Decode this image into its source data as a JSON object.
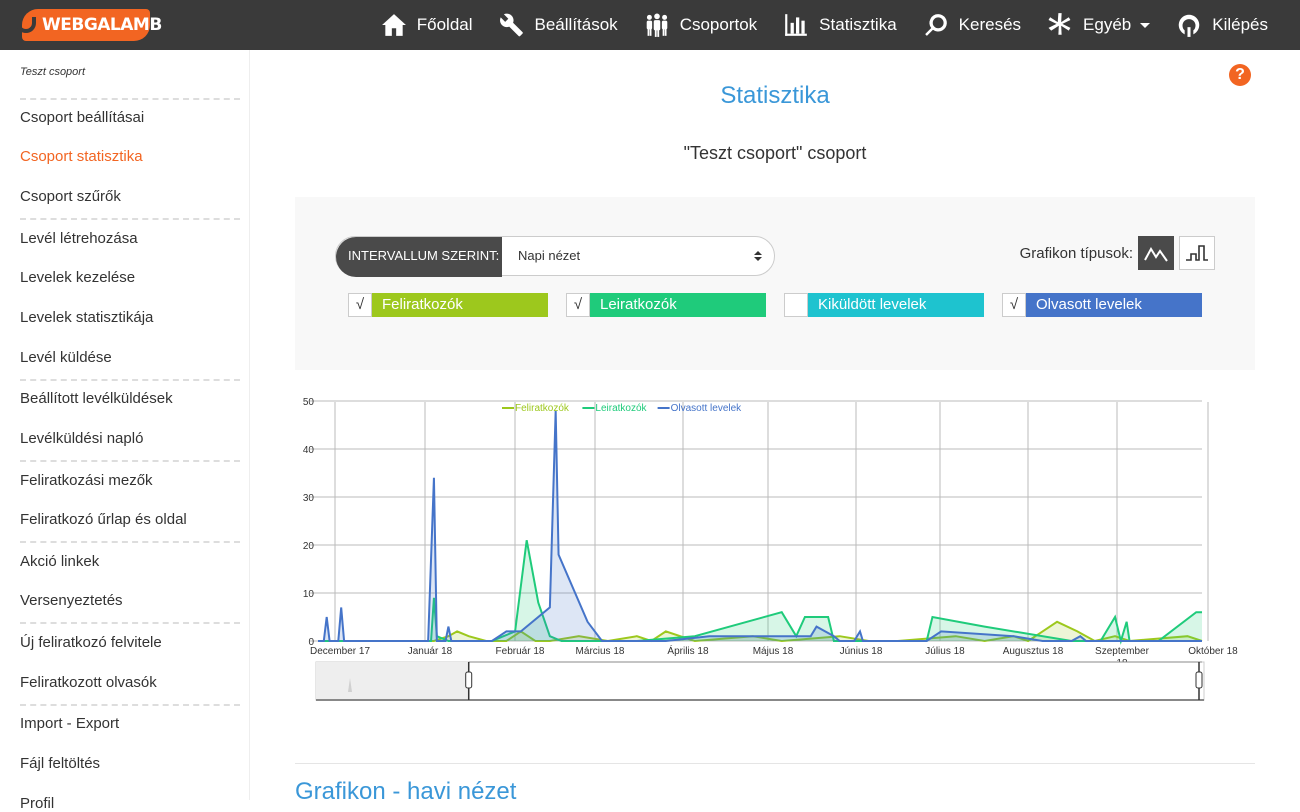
{
  "app": {
    "logo": "WEBGALAMB"
  },
  "nav": [
    {
      "label": "Főoldal",
      "icon": "home-icon"
    },
    {
      "label": "Beállítások",
      "icon": "tools-icon"
    },
    {
      "label": "Csoportok",
      "icon": "group-icon"
    },
    {
      "label": "Statisztika",
      "icon": "bar-chart-icon"
    },
    {
      "label": "Keresés",
      "icon": "search-icon"
    },
    {
      "label": "Egyéb",
      "icon": "asterisk-icon"
    },
    {
      "label": "Kilépés",
      "icon": "power-icon"
    }
  ],
  "sidebar": {
    "group_name": "Teszt csoport",
    "items": [
      {
        "label": "Csoport beállításai"
      },
      {
        "label": "Csoport statisztika",
        "active": true
      },
      {
        "label": "Csoport szűrők"
      },
      {
        "label": "Levél létrehozása"
      },
      {
        "label": "Levelek kezelése"
      },
      {
        "label": "Levelek statisztikája"
      },
      {
        "label": "Levél küldése"
      },
      {
        "label": "Beállított levélküldések"
      },
      {
        "label": "Levélküldési napló"
      },
      {
        "label": "Feliratkozási mezők"
      },
      {
        "label": "Feliratkozó űrlap és oldal"
      },
      {
        "label": "Akció linkek"
      },
      {
        "label": "Versenyeztetés"
      },
      {
        "label": "Új feliratkozó felvitele"
      },
      {
        "label": "Feliratkozott olvasók"
      },
      {
        "label": "Import - Export"
      },
      {
        "label": "Fájl feltöltés"
      },
      {
        "label": "Profil"
      }
    ]
  },
  "help": {
    "label": "?"
  },
  "page": {
    "title": "Statisztika",
    "subtitle": "\"Teszt csoport\" csoport",
    "section_title": "Grafikon - havi nézet"
  },
  "filters": {
    "interval_label": "INTERVALLUM SZERINT:",
    "interval_value": "Napi nézet",
    "chart_types_label": "Grafikon típusok:",
    "series": [
      {
        "label": "Feliratkozók",
        "checked": true,
        "color": "#9dc81d"
      },
      {
        "label": "Leiratkozók",
        "checked": true,
        "color": "#1fcb7b"
      },
      {
        "label": "Kiküldött levelek",
        "checked": false,
        "color": "#1ec3cf"
      },
      {
        "label": "Olvasott levelek",
        "checked": true,
        "color": "#4574c9"
      }
    ]
  },
  "chart_data": {
    "type": "area",
    "ylim": [
      0,
      50
    ],
    "yticks": [
      0,
      10,
      20,
      30,
      40,
      50
    ],
    "xticks": [
      "December 17",
      "Január 18",
      "Február 18",
      "Március 18",
      "Április 18",
      "Május 18",
      "Június 18",
      "Július 18",
      "Augusztus 18",
      "Szeptember 18",
      "Október 18"
    ],
    "legend": [
      "Feliratkozók",
      "Leiratkozók",
      "Olvasott levelek"
    ],
    "series": [
      {
        "name": "Feliratkozók",
        "color": "#9dc81d",
        "points": [
          [
            0,
            0
          ],
          [
            40,
            0
          ],
          [
            45,
            1
          ],
          [
            48,
            2
          ],
          [
            52,
            1
          ],
          [
            58,
            0
          ],
          [
            65,
            0
          ],
          [
            70,
            2
          ],
          [
            75,
            0
          ],
          [
            80,
            0
          ],
          [
            90,
            1
          ],
          [
            100,
            0
          ],
          [
            110,
            1
          ],
          [
            115,
            0
          ],
          [
            120,
            2
          ],
          [
            125,
            1
          ],
          [
            130,
            0
          ],
          [
            150,
            1
          ],
          [
            160,
            0
          ],
          [
            180,
            1
          ],
          [
            190,
            0
          ],
          [
            200,
            0
          ],
          [
            220,
            1
          ],
          [
            230,
            0
          ],
          [
            240,
            1
          ],
          [
            245,
            0
          ],
          [
            250,
            2
          ],
          [
            255,
            4
          ],
          [
            262,
            2
          ],
          [
            268,
            0
          ],
          [
            275,
            1
          ],
          [
            280,
            0
          ],
          [
            300,
            1
          ],
          [
            305,
            0
          ]
        ]
      },
      {
        "name": "Leiratkozók",
        "color": "#1fcb7b",
        "points": [
          [
            0,
            0
          ],
          [
            39,
            0
          ],
          [
            40,
            9
          ],
          [
            41,
            1
          ],
          [
            45,
            0
          ],
          [
            60,
            0
          ],
          [
            68,
            2
          ],
          [
            72,
            21
          ],
          [
            76,
            8
          ],
          [
            80,
            1
          ],
          [
            84,
            0
          ],
          [
            100,
            0
          ],
          [
            110,
            0
          ],
          [
            130,
            1
          ],
          [
            160,
            6
          ],
          [
            165,
            1
          ],
          [
            168,
            5
          ],
          [
            176,
            5
          ],
          [
            178,
            0
          ],
          [
            190,
            0
          ],
          [
            200,
            0
          ],
          [
            210,
            0
          ],
          [
            212,
            5
          ],
          [
            230,
            3
          ],
          [
            260,
            0
          ],
          [
            270,
            0
          ],
          [
            275,
            5
          ],
          [
            277,
            0
          ],
          [
            278,
            2
          ],
          [
            279,
            4
          ],
          [
            280,
            0
          ],
          [
            290,
            0
          ],
          [
            303,
            6
          ],
          [
            305,
            6
          ]
        ]
      },
      {
        "name": "Olvasott levelek",
        "color": "#4574c9",
        "points": [
          [
            0,
            0
          ],
          [
            2,
            0
          ],
          [
            3,
            5
          ],
          [
            4,
            0
          ],
          [
            6,
            0
          ],
          [
            7,
            0
          ],
          [
            8,
            7
          ],
          [
            9,
            0
          ],
          [
            15,
            0
          ],
          [
            38,
            0
          ],
          [
            40,
            34
          ],
          [
            41,
            0
          ],
          [
            44,
            0
          ],
          [
            45,
            3
          ],
          [
            46,
            0
          ],
          [
            60,
            0
          ],
          [
            65,
            2
          ],
          [
            70,
            2
          ],
          [
            80,
            7
          ],
          [
            82,
            48
          ],
          [
            83,
            18
          ],
          [
            93,
            4
          ],
          [
            98,
            0
          ],
          [
            120,
            0
          ],
          [
            135,
            1
          ],
          [
            160,
            1
          ],
          [
            170,
            1
          ],
          [
            172,
            3
          ],
          [
            178,
            1
          ],
          [
            180,
            0
          ],
          [
            185,
            0
          ],
          [
            187,
            2
          ],
          [
            188,
            0
          ],
          [
            200,
            0
          ],
          [
            210,
            0
          ],
          [
            215,
            2
          ],
          [
            240,
            1
          ],
          [
            250,
            0
          ],
          [
            260,
            0
          ],
          [
            263,
            1
          ],
          [
            265,
            0
          ],
          [
            305,
            0
          ]
        ]
      }
    ],
    "range_selector": {
      "from": 52,
      "to": 305
    }
  }
}
